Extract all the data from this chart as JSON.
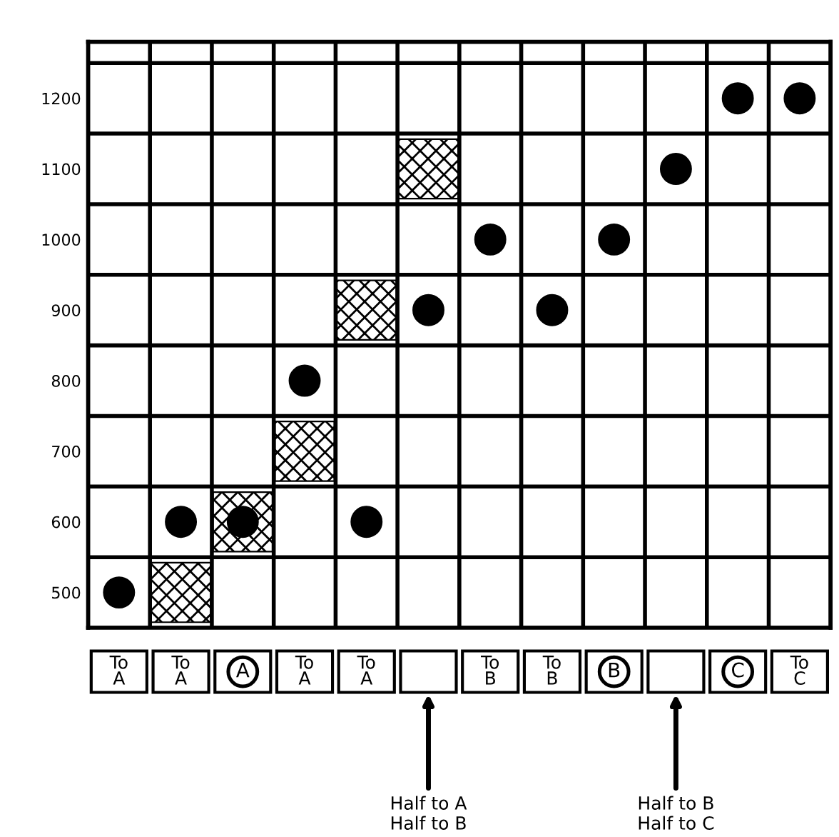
{
  "chart_data": {
    "type": "scatter",
    "categories": [
      "To\nA",
      "To\nA",
      "A",
      "To\nA",
      "To\nA",
      null,
      "To\nB",
      "To\nB",
      "B",
      null,
      "C",
      "To\nC"
    ],
    "series": [
      {
        "color": "#000000",
        "marker": "circle",
        "values": [
          500,
          600,
          600,
          800,
          600,
          900,
          1000,
          900,
          1000,
          1100,
          1200,
          1200
        ]
      },
      {
        "color": "#000000",
        "marker": "square",
        "values": [
          null,
          500,
          600,
          700,
          900,
          1100,
          null,
          null,
          null,
          null,
          null,
          null
        ]
      }
    ],
    "ylim": [
      450,
      1280
    ],
    "yticks": [
      500,
      600,
      700,
      800,
      900,
      1000,
      1100,
      1200
    ],
    "grid": true,
    "annotations": [
      "Half to A\nHalf to B",
      "Half to B\nHalf to C"
    ]
  }
}
